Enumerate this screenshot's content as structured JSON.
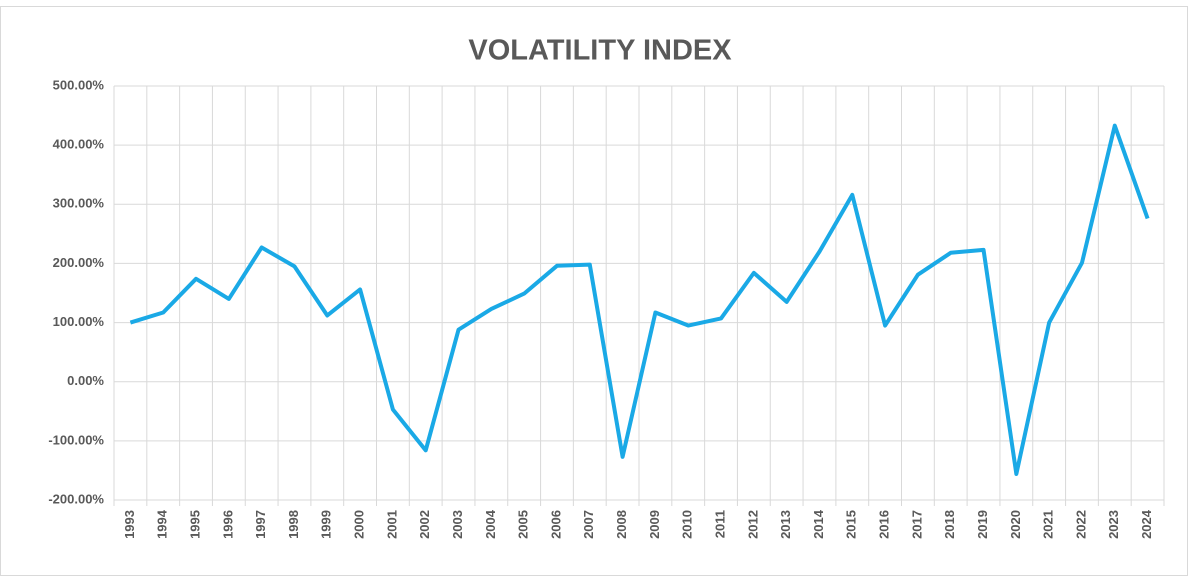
{
  "chart_data": {
    "type": "line",
    "title": "VOLATILITY INDEX",
    "categories": [
      "1993",
      "1994",
      "1995",
      "1996",
      "1997",
      "1998",
      "1999",
      "2000",
      "2001",
      "2002",
      "2003",
      "2004",
      "2005",
      "2006",
      "2007",
      "2008",
      "2009",
      "2010",
      "2011",
      "2012",
      "2013",
      "2014",
      "2015",
      "2016",
      "2017",
      "2018",
      "2019",
      "2020",
      "2021",
      "2022",
      "2023",
      "2024"
    ],
    "series": [
      {
        "name": "Volatility Index",
        "color": "#1aa9e6",
        "values": [
          100,
          117,
          174,
          140,
          227,
          195,
          112,
          156,
          -47,
          -116,
          88,
          123,
          149,
          196,
          198,
          -127,
          117,
          95,
          107,
          184,
          135,
          220,
          316,
          95,
          181,
          218,
          223,
          -156,
          100,
          201,
          433,
          276
        ]
      }
    ],
    "ylim": [
      -200,
      500
    ],
    "yticks": [
      {
        "value": -200,
        "label": "-200.00%"
      },
      {
        "value": -100,
        "label": "-100.00%"
      },
      {
        "value": 0,
        "label": "0.00%"
      },
      {
        "value": 100,
        "label": "100.00%"
      },
      {
        "value": 200,
        "label": "200.00%"
      },
      {
        "value": 300,
        "label": "300.00%"
      },
      {
        "value": 400,
        "label": "400.00%"
      },
      {
        "value": 500,
        "label": "500.00%"
      }
    ],
    "grid": true
  }
}
